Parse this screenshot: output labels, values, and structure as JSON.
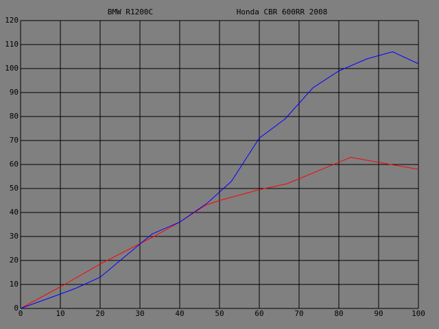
{
  "chart_data": {
    "type": "line",
    "series": [
      {
        "name": "BMW R1200C",
        "color": "#ff0000",
        "x": [
          0,
          10,
          20,
          33.5,
          40,
          46.5,
          50,
          60,
          67,
          83,
          93,
          100
        ],
        "values": [
          0,
          9,
          18.5,
          30,
          36,
          43,
          45,
          49.5,
          52,
          63,
          60,
          58
        ]
      },
      {
        "name": "Honda CBR 600RR 2008",
        "color": "#0000ff",
        "x": [
          0,
          10,
          14,
          20,
          33,
          40,
          47,
          53,
          60,
          66.5,
          73.5,
          80,
          87,
          93.5,
          100
        ],
        "values": [
          0,
          6,
          8.5,
          13,
          31,
          36,
          44,
          53,
          71,
          79,
          92,
          99,
          104,
          107,
          102
        ]
      }
    ],
    "xlim": [
      0,
      100
    ],
    "xticks": [
      0,
      10,
      20,
      30,
      40,
      50,
      60,
      70,
      80,
      90,
      100
    ],
    "ylim": [
      0,
      120
    ],
    "yticks": [
      0,
      10,
      20,
      30,
      40,
      50,
      60,
      70,
      80,
      90,
      100,
      110,
      120
    ],
    "grid": true
  }
}
